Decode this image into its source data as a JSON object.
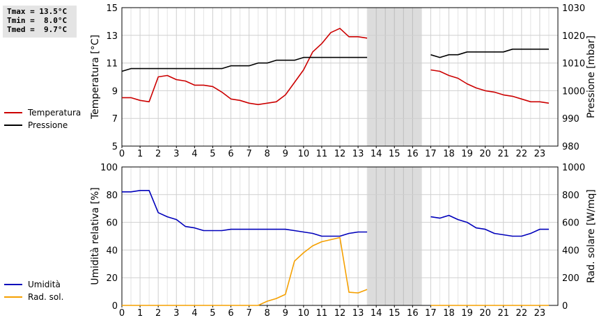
{
  "stats": {
    "tmax": "Tmax = 13.5°C",
    "tmin": "Tmin =  8.0°C",
    "tmed": "Tmed =  9.7°C"
  },
  "colors": {
    "temperature": "#cc0000",
    "pressure": "#000000",
    "humidity": "#0000bb",
    "solar": "#f5a000",
    "gap_fill": "#dcdcdc",
    "grid": "#d8d8d8"
  },
  "chart_data": [
    {
      "type": "line",
      "ylabel": "Temperatura [°C]",
      "y2label": "Pressione [mbar]",
      "xlim": [
        0,
        24
      ],
      "ylim": [
        5,
        15
      ],
      "y2lim": [
        980,
        1030
      ],
      "xticks": [
        "0",
        "1",
        "2",
        "3",
        "4",
        "5",
        "6",
        "7",
        "8",
        "9",
        "10",
        "11",
        "12",
        "13",
        "14",
        "15",
        "16",
        "17",
        "18",
        "19",
        "20",
        "21",
        "22",
        "23"
      ],
      "yticks": [
        "5",
        "7",
        "9",
        "11",
        "13",
        "15"
      ],
      "y2ticks": [
        "980",
        "990",
        "1000",
        "1010",
        "1020",
        "1030"
      ],
      "gap": [
        13.5,
        16.5
      ],
      "grid": true,
      "legend": "left",
      "series": [
        {
          "name": "Temperatura",
          "axis": "left",
          "segments": [
            [
              [
                0,
                8.5
              ],
              [
                0.5,
                8.5
              ],
              [
                1,
                8.3
              ],
              [
                1.5,
                8.2
              ],
              [
                2,
                10.0
              ],
              [
                2.5,
                10.1
              ],
              [
                3,
                9.8
              ],
              [
                3.5,
                9.7
              ],
              [
                4,
                9.4
              ],
              [
                4.5,
                9.4
              ],
              [
                5,
                9.3
              ],
              [
                5.5,
                8.9
              ],
              [
                6,
                8.4
              ],
              [
                6.5,
                8.3
              ],
              [
                7,
                8.1
              ],
              [
                7.5,
                8.0
              ],
              [
                8,
                8.1
              ],
              [
                8.5,
                8.2
              ],
              [
                9,
                8.7
              ],
              [
                9.5,
                9.6
              ],
              [
                10,
                10.5
              ],
              [
                10.5,
                11.8
              ],
              [
                11,
                12.4
              ],
              [
                11.5,
                13.2
              ],
              [
                12,
                13.5
              ],
              [
                12.5,
                12.9
              ],
              [
                13,
                12.9
              ],
              [
                13.5,
                12.8
              ]
            ],
            [
              [
                17,
                10.5
              ],
              [
                17.5,
                10.4
              ],
              [
                18,
                10.1
              ],
              [
                18.5,
                9.9
              ],
              [
                19,
                9.5
              ],
              [
                19.5,
                9.2
              ],
              [
                20,
                9.0
              ],
              [
                20.5,
                8.9
              ],
              [
                21,
                8.7
              ],
              [
                21.5,
                8.6
              ],
              [
                22,
                8.4
              ],
              [
                22.5,
                8.2
              ],
              [
                23,
                8.2
              ],
              [
                23.5,
                8.1
              ]
            ]
          ]
        },
        {
          "name": "Pressione",
          "axis": "right",
          "segments": [
            [
              [
                0,
                1007
              ],
              [
                0.5,
                1008
              ],
              [
                1,
                1008
              ],
              [
                5.5,
                1008
              ],
              [
                6,
                1009
              ],
              [
                7,
                1009
              ],
              [
                7.5,
                1010
              ],
              [
                8,
                1010
              ],
              [
                8.5,
                1011
              ],
              [
                9.5,
                1011
              ],
              [
                10,
                1012
              ],
              [
                13.5,
                1012
              ]
            ],
            [
              [
                17,
                1013
              ],
              [
                17.5,
                1012
              ],
              [
                18,
                1013
              ],
              [
                18.5,
                1013
              ],
              [
                19,
                1014
              ],
              [
                21,
                1014
              ],
              [
                21.5,
                1015
              ],
              [
                23.5,
                1015
              ]
            ]
          ]
        }
      ]
    },
    {
      "type": "line",
      "ylabel": "Umidità relativa [%]",
      "y2label": "Rad. solare [W/mq]",
      "xlim": [
        0,
        24
      ],
      "ylim": [
        0,
        100
      ],
      "y2lim": [
        0,
        1000
      ],
      "xticks": [
        "0",
        "1",
        "2",
        "3",
        "4",
        "5",
        "6",
        "7",
        "8",
        "9",
        "10",
        "11",
        "12",
        "13",
        "14",
        "15",
        "16",
        "17",
        "18",
        "19",
        "20",
        "21",
        "22",
        "23"
      ],
      "yticks": [
        "0",
        "20",
        "40",
        "60",
        "80",
        "100"
      ],
      "y2ticks": [
        "0",
        "200",
        "400",
        "600",
        "800",
        "1000"
      ],
      "gap": [
        13.5,
        16.5
      ],
      "grid": true,
      "legend": "left",
      "series": [
        {
          "name": "Umidità",
          "axis": "left",
          "segments": [
            [
              [
                0,
                82
              ],
              [
                0.5,
                82
              ],
              [
                1,
                83
              ],
              [
                1.5,
                83
              ],
              [
                2,
                67
              ],
              [
                2.5,
                64
              ],
              [
                3,
                62
              ],
              [
                3.5,
                57
              ],
              [
                4,
                56
              ],
              [
                4.5,
                54
              ],
              [
                5,
                54
              ],
              [
                5.5,
                54
              ],
              [
                6,
                55
              ],
              [
                6.5,
                55
              ],
              [
                8.5,
                55
              ],
              [
                9,
                55
              ],
              [
                9.5,
                54
              ],
              [
                10,
                53
              ],
              [
                10.5,
                52
              ],
              [
                11,
                50
              ],
              [
                12,
                50
              ],
              [
                12.5,
                52
              ],
              [
                13,
                53
              ],
              [
                13.5,
                53
              ]
            ],
            [
              [
                17,
                64
              ],
              [
                17.5,
                63
              ],
              [
                18,
                65
              ],
              [
                18.5,
                62
              ],
              [
                19,
                60
              ],
              [
                19.5,
                56
              ],
              [
                20,
                55
              ],
              [
                20.5,
                52
              ],
              [
                21,
                51
              ],
              [
                21.5,
                50
              ],
              [
                22,
                50
              ],
              [
                22.5,
                52
              ],
              [
                23,
                55
              ],
              [
                23.5,
                55
              ]
            ]
          ]
        },
        {
          "name": "Rad. sol.",
          "axis": "right",
          "segments": [
            [
              [
                0,
                0
              ],
              [
                7.5,
                0
              ],
              [
                8,
                30
              ],
              [
                8.5,
                50
              ],
              [
                9,
                80
              ],
              [
                9.5,
                320
              ],
              [
                10,
                380
              ],
              [
                10.5,
                430
              ],
              [
                11,
                460
              ],
              [
                11.5,
                475
              ],
              [
                12,
                490
              ],
              [
                12.5,
                95
              ],
              [
                13,
                90
              ],
              [
                13.5,
                115
              ]
            ],
            [
              [
                17,
                0
              ],
              [
                23.5,
                0
              ]
            ]
          ]
        }
      ]
    }
  ]
}
